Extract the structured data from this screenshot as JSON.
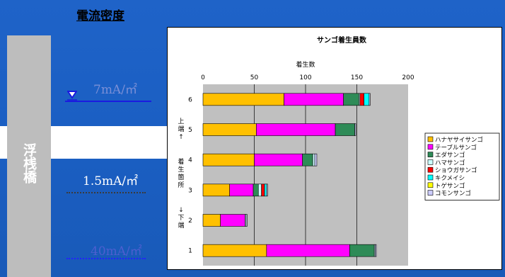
{
  "page": {
    "density_title": "電流密度",
    "pier_label": "浮桟橋",
    "current_top": "7mA/㎡",
    "current_mid": "1.5mA/㎡",
    "current_bottom": "40mA/㎡"
  },
  "colors": {
    "background": "#1f63c8",
    "pier": "#bdbdbd",
    "plot_area": "#c0c0c0"
  },
  "chart_data": {
    "type": "bar",
    "orientation": "horizontal",
    "stacked": true,
    "title": "サンゴ着生員数",
    "xlabel": "着生数",
    "xlim": [
      0,
      200
    ],
    "xticks": [
      0,
      50,
      100,
      150,
      200
    ],
    "ylabel_top": "上端↑",
    "ylabel_mid": "着生箇所",
    "ylabel_bottom": "↓下端",
    "categories": [
      "6",
      "5",
      "4",
      "3",
      "2",
      "1"
    ],
    "series": [
      {
        "name": "ハナヤサイサンゴ",
        "color": "#ffc000",
        "values": [
          79,
          52,
          50,
          26,
          17,
          62
        ]
      },
      {
        "name": "テーブルサンゴ",
        "color": "#ff00ff",
        "values": [
          58,
          77,
          47,
          23,
          24,
          81
        ]
      },
      {
        "name": "エダサンゴ",
        "color": "#2e8b57",
        "values": [
          15,
          19,
          10,
          5,
          0,
          24
        ]
      },
      {
        "name": "ハマサンゴ",
        "color": "#ccffff",
        "values": [
          1,
          0,
          2,
          3,
          1,
          1
        ]
      },
      {
        "name": "ショウガサンゴ",
        "color": "#ff0000",
        "values": [
          4,
          0,
          0,
          3,
          0,
          0
        ]
      },
      {
        "name": "キクメイシ",
        "color": "#00ffff",
        "values": [
          5,
          0,
          0,
          2,
          0,
          0
        ]
      },
      {
        "name": "トゲサンゴ",
        "color": "#ffff00",
        "values": [
          0,
          0,
          0,
          0,
          0,
          0
        ]
      },
      {
        "name": "コモンサンゴ",
        "color": "#ccccff",
        "values": [
          1,
          1,
          2,
          1,
          1,
          1
        ]
      }
    ],
    "legend_position": "right"
  }
}
